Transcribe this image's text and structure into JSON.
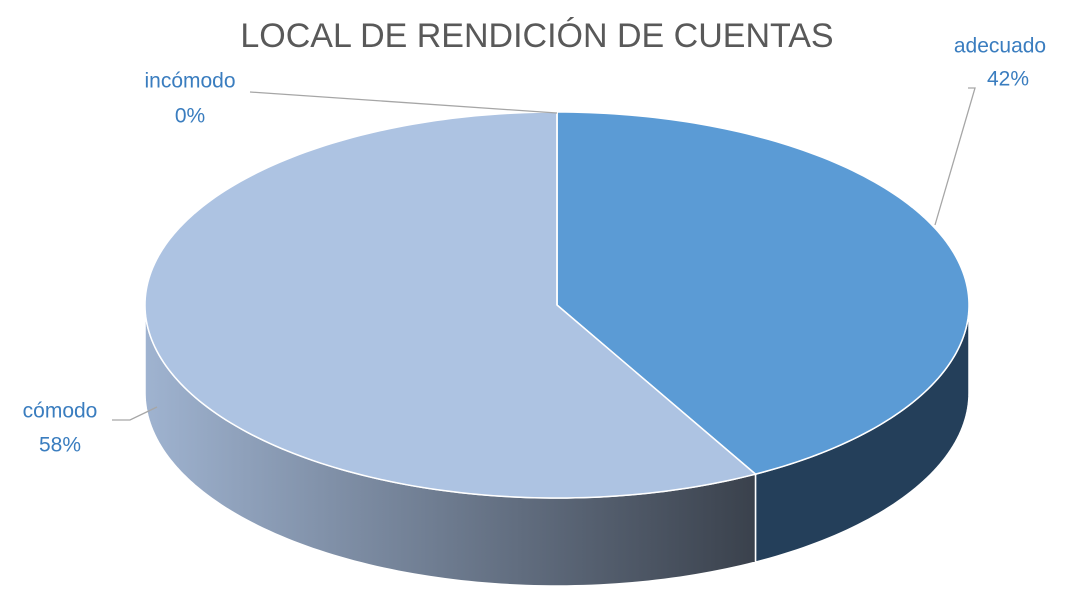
{
  "chart_data": {
    "type": "pie3d",
    "title": "LOCAL DE RENDICIÓN DE CUENTAS",
    "categories": [
      "adecuado",
      "cómodo",
      "incómodo"
    ],
    "values": [
      42,
      58,
      0
    ],
    "value_labels": [
      "42%",
      "58%",
      "0%"
    ],
    "colors": [
      "#5b9bd5",
      "#adc3e2",
      "#264478"
    ]
  }
}
